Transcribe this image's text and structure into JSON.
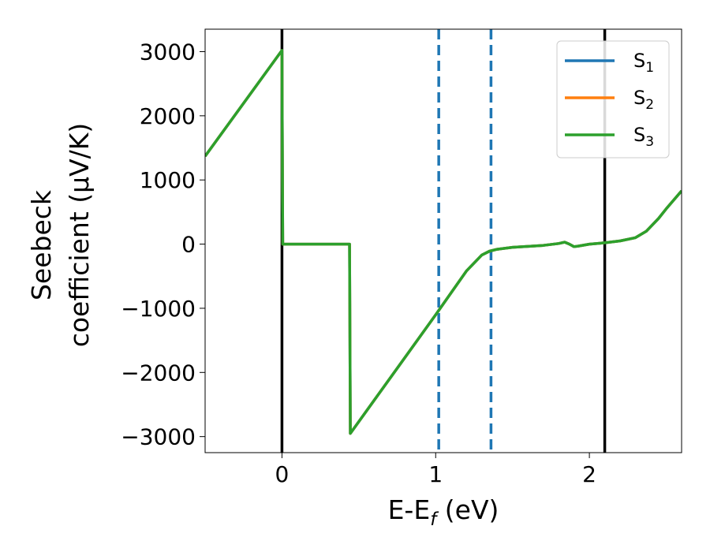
{
  "chart_data": {
    "type": "line",
    "xlabel": "E-Eƒ (eV)",
    "xlabel_parts": {
      "base": "E-E",
      "sub": "f",
      "unit": " (eV)"
    },
    "ylabel_lines": [
      "Seebeck",
      "coefficient  (μV/K)"
    ],
    "xlim": [
      -0.5,
      2.6
    ],
    "ylim": [
      -3250,
      3350
    ],
    "x_ticks": [
      0,
      1,
      2
    ],
    "x_tick_labels": [
      "0",
      "1",
      "2"
    ],
    "y_ticks": [
      -3000,
      -2000,
      -1000,
      0,
      1000,
      2000,
      3000
    ],
    "y_tick_labels": [
      "−3000",
      "−2000",
      "−1000",
      "0",
      "1000",
      "2000",
      "3000"
    ],
    "grid": false,
    "legend_position": "top-right",
    "series": [
      {
        "name": "S1",
        "label_base": "S",
        "label_sub": "1",
        "color": "#1f77b4",
        "x": [
          -0.5,
          0.0,
          0.005,
          0.44,
          0.445,
          1.0,
          1.2,
          1.3,
          1.35,
          1.4,
          1.5,
          1.7,
          1.8,
          1.84,
          1.87,
          1.9,
          1.93,
          2.0,
          2.1,
          2.2,
          2.3,
          2.37,
          2.45,
          2.5,
          2.6
        ],
        "y": [
          1370,
          3020,
          0,
          0,
          -2950,
          -1100,
          -420,
          -170,
          -110,
          -80,
          -50,
          -20,
          10,
          30,
          0,
          -40,
          -30,
          0,
          20,
          50,
          100,
          200,
          400,
          550,
          830
        ]
      },
      {
        "name": "S2",
        "label_base": "S",
        "label_sub": "2",
        "color": "#ff7f0e",
        "x": [
          -0.5,
          0.0,
          0.005,
          0.44,
          0.445,
          1.0,
          1.2,
          1.3,
          1.35,
          1.4,
          1.5,
          1.7,
          1.8,
          1.84,
          1.87,
          1.9,
          1.93,
          2.0,
          2.1,
          2.2,
          2.3,
          2.37,
          2.45,
          2.5,
          2.6
        ],
        "y": [
          1370,
          3020,
          0,
          0,
          -2950,
          -1100,
          -420,
          -170,
          -110,
          -80,
          -50,
          -20,
          10,
          30,
          0,
          -40,
          -30,
          0,
          20,
          50,
          100,
          200,
          400,
          550,
          830
        ]
      },
      {
        "name": "S3",
        "label_base": "S",
        "label_sub": "3",
        "color": "#2ca02c",
        "x": [
          -0.5,
          0.0,
          0.005,
          0.44,
          0.445,
          1.0,
          1.2,
          1.3,
          1.35,
          1.4,
          1.5,
          1.7,
          1.8,
          1.84,
          1.87,
          1.9,
          1.93,
          2.0,
          2.1,
          2.2,
          2.3,
          2.37,
          2.45,
          2.5,
          2.6
        ],
        "y": [
          1370,
          3020,
          0,
          0,
          -2950,
          -1100,
          -420,
          -170,
          -110,
          -80,
          -50,
          -20,
          10,
          30,
          0,
          -40,
          -30,
          0,
          20,
          50,
          100,
          200,
          400,
          550,
          830
        ]
      }
    ],
    "vertical_lines": [
      {
        "x": 0.0,
        "color": "#000000",
        "style": "solid"
      },
      {
        "x": 2.1,
        "color": "#000000",
        "style": "solid"
      },
      {
        "x": 1.02,
        "color": "#1f77b4",
        "style": "dashed"
      },
      {
        "x": 1.36,
        "color": "#1f77b4",
        "style": "dashed"
      }
    ]
  }
}
